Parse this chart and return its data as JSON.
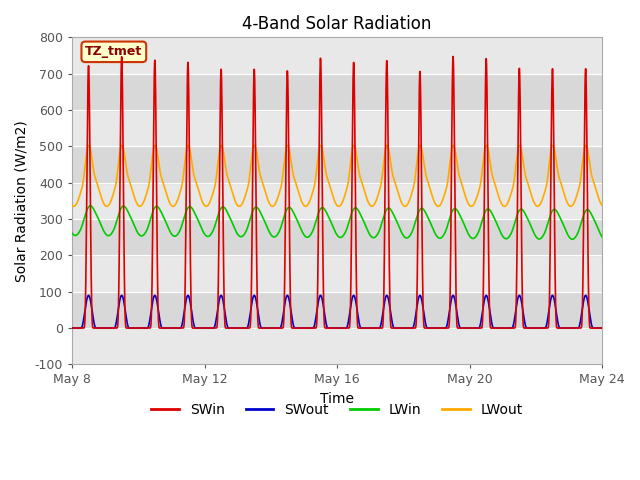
{
  "title": "4-Band Solar Radiation",
  "xlabel": "Time",
  "ylabel": "Solar Radiation (W/m2)",
  "ylim": [
    -100,
    800
  ],
  "xlim_start": 8,
  "xlim_end": 24,
  "xtick_positions": [
    8,
    12,
    16,
    20,
    24
  ],
  "xtick_labels": [
    "May 8",
    "May 12",
    "May 16",
    "May 20",
    "May 24"
  ],
  "annotation_text": "TZ_tmet",
  "annotation_bg": "#ffffcc",
  "annotation_border": "#cc3300",
  "series_colors": {
    "SWin": "#dd0000",
    "SWout": "#0000cc",
    "LWin": "#00cc00",
    "LWout": "#ffaa00"
  },
  "legend_labels": [
    "SWin",
    "SWout",
    "LWin",
    "LWout"
  ],
  "legend_colors": [
    "#dd0000",
    "#0000cc",
    "#00cc00",
    "#ffaa00"
  ],
  "bg_color": "#ffffff",
  "plot_bg_light": "#f0f0f0",
  "plot_bg_dark": "#e0e0e0",
  "n_days": 16,
  "samples_per_day": 240
}
